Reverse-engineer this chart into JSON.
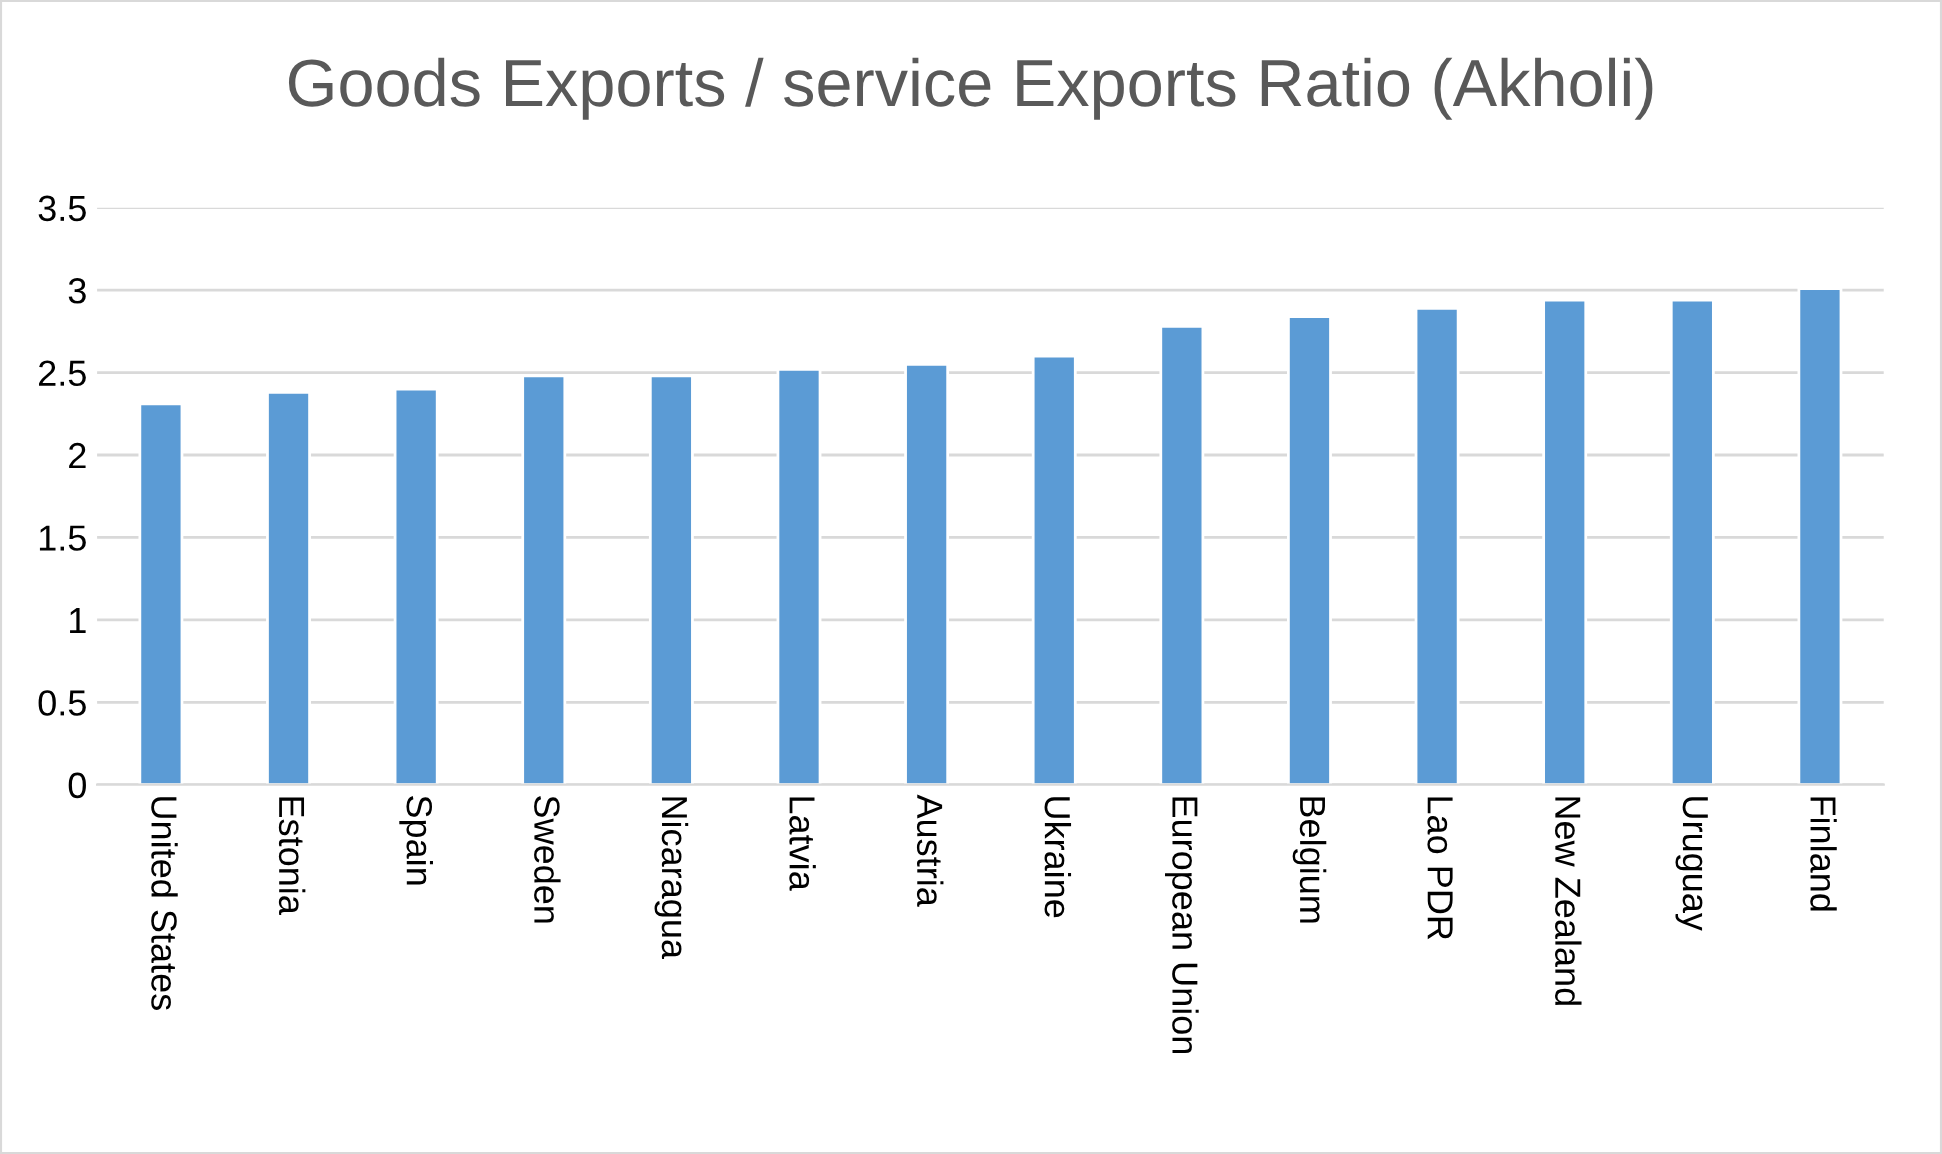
{
  "chart_data": {
    "type": "bar",
    "title": "Goods Exports / service Exports Ratio (Akholi)",
    "categories": [
      "United States",
      "Estonia",
      "Spain",
      "Sweden",
      "Nicaragua",
      "Latvia",
      "Austria",
      "Ukraine",
      "European Union",
      "Belgium",
      "Lao PDR",
      "New Zealand",
      "Uruguay",
      "Finland"
    ],
    "values": [
      2.31,
      2.38,
      2.4,
      2.48,
      2.48,
      2.52,
      2.55,
      2.6,
      2.78,
      2.84,
      2.89,
      2.94,
      2.94,
      3.01
    ],
    "color": "#5b9bd5",
    "ylim": [
      0,
      3.5
    ],
    "yticks": [
      0,
      0.5,
      1,
      1.5,
      2,
      2.5,
      3,
      3.5
    ],
    "grid": "y",
    "legend": false
  }
}
